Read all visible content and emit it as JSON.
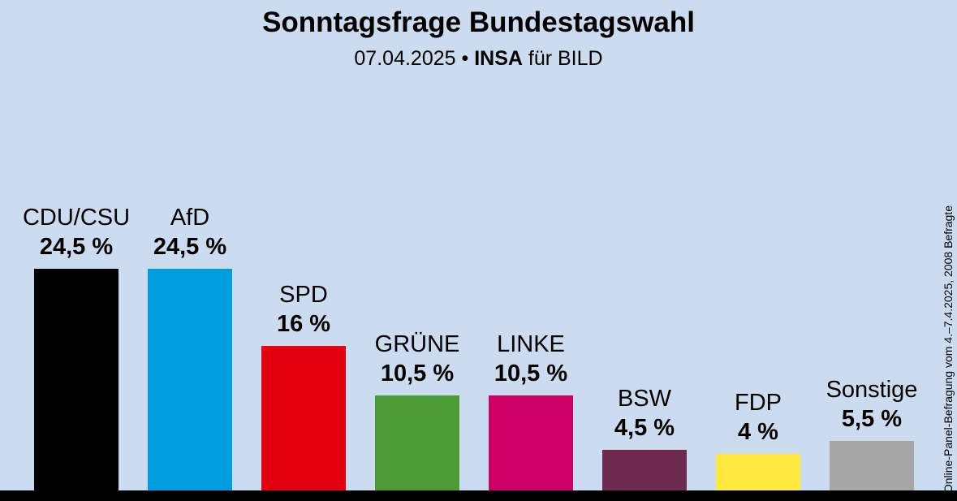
{
  "header": {
    "title": "Sonntagsfrage Bundestagswahl",
    "subtitle_date": "07.04.2025",
    "subtitle_separator": "•",
    "subtitle_institute": "INSA",
    "subtitle_suffix": "für BILD"
  },
  "side_note": "Online-Panel-Befragung vom 4.–7.4.2025, 2008 Befragte",
  "chart_data": {
    "type": "bar",
    "title": "Sonntagsfrage Bundestagswahl",
    "subtitle": "07.04.2025 • INSA für BILD",
    "categories": [
      "CDU/CSU",
      "AfD",
      "SPD",
      "GRÜNE",
      "LINKE",
      "BSW",
      "FDP",
      "Sonstige"
    ],
    "values": [
      24.5,
      24.5,
      16,
      10.5,
      10.5,
      4.5,
      4,
      5.5
    ],
    "value_labels": [
      "24,5 %",
      "24,5 %",
      "16 %",
      "10,5 %",
      "10,5 %",
      "4,5 %",
      "4 %",
      "5,5 %"
    ],
    "colors": [
      "#000000",
      "#009ee0",
      "#e3000f",
      "#4d9b35",
      "#cc0066",
      "#6e2a4f",
      "#ffe93e",
      "#a6a6a6"
    ],
    "ylim": [
      0,
      26
    ],
    "grid": false,
    "legend": false,
    "annotation": "Online-Panel-Befragung vom 4.–7.4.2025, 2008 Befragte"
  }
}
